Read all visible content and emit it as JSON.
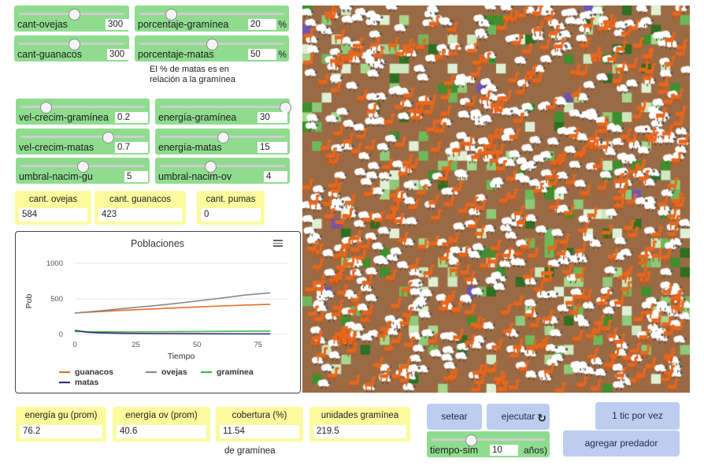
{
  "sliders": {
    "cant_ovejas": {
      "label": "cant-ovejas",
      "value": "300",
      "level": 0.52
    },
    "cant_guanacos": {
      "label": "cant-guanacos",
      "value": "300",
      "level": 0.52
    },
    "porcentaje_graminea": {
      "label": "porcentaje-gramínea",
      "value": "20",
      "unit": "%",
      "level": 0.22
    },
    "porcentaje_matas": {
      "label": "porcentaje-matas",
      "value": "50",
      "unit": "%",
      "level": 0.5
    },
    "vel_crecim_graminea": {
      "label": "vel-crecim-gramínea",
      "value": "0.2",
      "level": 0.2
    },
    "vel_crecim_matas": {
      "label": "vel-crecim-matas",
      "value": "0.7",
      "level": 0.7
    },
    "umbral_nacim_gu": {
      "label": "umbral-nacim-gu",
      "value": "5",
      "level": 0.5
    },
    "energia_graminea": {
      "label": "energía-gramínea",
      "value": "30",
      "level": 1.0
    },
    "energia_matas": {
      "label": "energía-matas",
      "value": "15",
      "level": 0.5
    },
    "umbral_nacim_ov": {
      "label": "umbral-nacim-ov",
      "value": "4",
      "level": 0.4
    },
    "tiempo_sim": {
      "label": "tiempo-sim",
      "value": "10",
      "unit": "años)",
      "level": 0.35
    }
  },
  "notes": {
    "matas_line1": "El % de matas es en",
    "matas_line2": "relación a la gramínea",
    "cobertura_sub": "de gramínea"
  },
  "monitors": {
    "cant_ovejas": {
      "label": "cant. ovejas",
      "value": "584"
    },
    "cant_guanacos": {
      "label": "cant. guanacos",
      "value": "423"
    },
    "cant_pumas": {
      "label": "cant. pumas",
      "value": "0"
    },
    "energia_gu": {
      "label": "energía gu (prom)",
      "value": "76.2"
    },
    "energia_ov": {
      "label": "energía ov (prom)",
      "value": "40.6"
    },
    "cobertura": {
      "label": "cobertura (%)",
      "value": "11.54"
    },
    "unidades_graminea": {
      "label": "unidades gramínea",
      "value": "219.5"
    }
  },
  "buttons": {
    "setear": "setear",
    "ejecutar": "ejecutar",
    "tic": "1 tic por vez",
    "agregar_predador": "agregar predador"
  },
  "icons": {
    "menu": "hamburger-menu-icon",
    "forever": "forever-loop-icon"
  },
  "colors": {
    "slider": "#8fdc8f",
    "monitor": "#fbfb9e",
    "button": "#bccdf0",
    "ground": "#9a6a45",
    "guanacos": "#e0702a",
    "ovejas": "#8a8a8a",
    "graminea": "#44b944",
    "matas": "#3a2e7a"
  },
  "chart_data": {
    "type": "line",
    "title": "Poblaciones",
    "xlabel": "Tiempo",
    "ylabel": "Pob",
    "xlim": [
      0,
      87
    ],
    "ylim": [
      0,
      1000
    ],
    "xticks": [
      "0",
      "25",
      "50",
      "75"
    ],
    "yticks": [
      "0",
      "500",
      "1000"
    ],
    "series": [
      {
        "name": "guanacos",
        "color": "#e0702a",
        "x": [
          0,
          10,
          20,
          30,
          40,
          50,
          60,
          70,
          80
        ],
        "values": [
          300,
          320,
          340,
          355,
          370,
          385,
          400,
          412,
          423
        ]
      },
      {
        "name": "ovejas",
        "color": "#8a8a8a",
        "x": [
          0,
          10,
          20,
          30,
          40,
          50,
          60,
          70,
          80
        ],
        "values": [
          300,
          330,
          365,
          395,
          430,
          470,
          510,
          555,
          584
        ]
      },
      {
        "name": "gramínea",
        "color": "#44b944",
        "x": [
          0,
          10,
          20,
          30,
          40,
          50,
          60,
          70,
          80
        ],
        "values": [
          40,
          35,
          34,
          36,
          38,
          40,
          42,
          44,
          45
        ]
      },
      {
        "name": "matas",
        "color": "#3a2e7a",
        "x": [
          0,
          5,
          10,
          20,
          30,
          40,
          50,
          60,
          70,
          80
        ],
        "values": [
          55,
          30,
          20,
          15,
          12,
          10,
          9,
          8,
          7,
          6
        ]
      }
    ],
    "legend_position": "bottom"
  }
}
